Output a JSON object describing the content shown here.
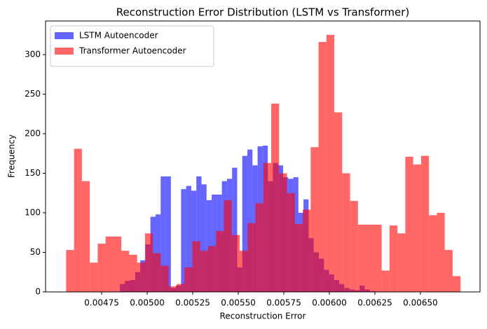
{
  "chart_data": {
    "type": "histogram",
    "title": "Reconstruction Error Distribution (LSTM vs Transformer)",
    "x_label": "Reconstruction Error",
    "y_label": "Frequency",
    "xlim": [
      0.004442,
      0.006827
    ],
    "ylim": [
      0,
      342.5
    ],
    "xticks": [
      {
        "value": 0.00475,
        "label": "0.00475"
      },
      {
        "value": 0.005,
        "label": "0.00500"
      },
      {
        "value": 0.00525,
        "label": "0.00525"
      },
      {
        "value": 0.0055,
        "label": "0.00550"
      },
      {
        "value": 0.00575,
        "label": "0.00575"
      },
      {
        "value": 0.006,
        "label": "0.00600"
      },
      {
        "value": 0.00625,
        "label": "0.00625"
      },
      {
        "value": 0.0065,
        "label": "0.00650"
      }
    ],
    "yticks": [
      0,
      50,
      100,
      150,
      200,
      250,
      300
    ],
    "legend": "upper left",
    "alpha": 0.6,
    "series": [
      {
        "name": "LSTM Autoencoder",
        "color": "#0000ff",
        "bins": [
          0.00485,
          0.004878,
          0.004906,
          0.004934,
          0.004962,
          0.00499,
          0.005018,
          0.005046,
          0.005074,
          0.005102,
          0.00513,
          0.005158,
          0.005186,
          0.005214,
          0.005242,
          0.00527,
          0.005298,
          0.005326,
          0.005354,
          0.005382,
          0.00541,
          0.005438,
          0.005466,
          0.005494,
          0.005522,
          0.00555,
          0.005578,
          0.005606,
          0.005634,
          0.005662,
          0.00569,
          0.005718,
          0.005746,
          0.005774,
          0.005802,
          0.00583,
          0.005858,
          0.005886,
          0.005914,
          0.005942,
          0.00597,
          0.005998,
          0.006026,
          0.006054,
          0.006082,
          0.00611,
          0.006138,
          0.006166,
          0.006194,
          0.006222,
          0.00625
        ],
        "values": [
          10,
          14,
          15,
          25,
          40,
          60,
          95,
          98,
          146,
          146,
          5,
          8,
          130,
          134,
          128,
          146,
          136,
          116,
          123,
          123,
          140,
          143,
          157,
          31,
          172,
          180,
          160,
          184,
          185,
          140,
          163,
          160,
          145,
          143,
          145,
          100,
          117,
          68,
          50,
          42,
          28,
          22,
          15,
          10,
          5,
          3,
          2,
          8,
          3,
          1
        ]
      },
      {
        "name": "Transformer Autoencoder",
        "color": "#ff0000",
        "bins": [
          0.004555,
          0.0045983,
          0.0046416,
          0.0046849,
          0.0047282,
          0.0047715,
          0.0048148,
          0.0048581,
          0.0049014,
          0.0049447,
          0.004988,
          0.0050313,
          0.0050746,
          0.0051179,
          0.0051612,
          0.0052045,
          0.0052478,
          0.0052911,
          0.0053344,
          0.0053777,
          0.005421,
          0.0054643,
          0.0055076,
          0.0055509,
          0.0055942,
          0.0056375,
          0.0056808,
          0.0057241,
          0.0057674,
          0.0058107,
          0.005854,
          0.0058973,
          0.0059406,
          0.0059839,
          0.0060272,
          0.0060705,
          0.0061138,
          0.0061571,
          0.0062004,
          0.0062437,
          0.006287,
          0.0063303,
          0.0063736,
          0.0064169,
          0.0064602,
          0.0065035,
          0.0065468,
          0.0065901,
          0.0066334,
          0.0066767,
          0.00672
        ],
        "values": [
          53,
          181,
          140,
          37,
          61,
          70,
          70,
          52,
          47,
          37,
          74,
          49,
          33,
          7,
          10,
          31,
          64,
          52,
          58,
          77,
          116,
          72,
          52,
          87,
          112,
          163,
          238,
          150,
          125,
          86,
          104,
          183,
          316,
          325,
          227,
          150,
          115,
          85,
          85,
          85,
          27,
          84,
          74,
          171,
          161,
          172,
          97,
          100,
          53,
          20
        ]
      }
    ]
  }
}
